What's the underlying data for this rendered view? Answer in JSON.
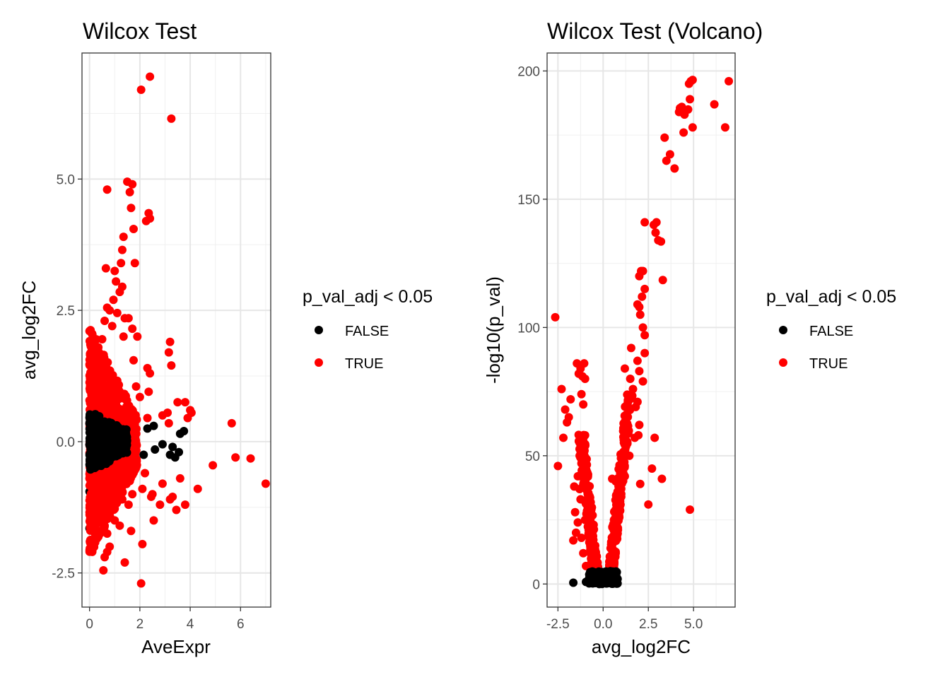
{
  "legend": {
    "title": "p_val_adj < 0.05",
    "entries": [
      {
        "label": "FALSE",
        "color": "#000000"
      },
      {
        "label": "TRUE",
        "color": "#ff0000"
      }
    ]
  },
  "chart_data": [
    {
      "type": "scatter",
      "title": "Wilcox Test",
      "xlabel": "AveExpr",
      "ylabel": "avg_log2FC",
      "xlim": [
        -0.3,
        7.2
      ],
      "ylim": [
        -3.15,
        7.4
      ],
      "xticks": [
        {
          "v": 0,
          "label": "0"
        },
        {
          "v": 2,
          "label": "2"
        },
        {
          "v": 4,
          "label": "4"
        },
        {
          "v": 6,
          "label": "6"
        }
      ],
      "yticks": [
        {
          "v": -2.5,
          "label": "-2.5"
        },
        {
          "v": 0,
          "label": "0.0"
        },
        {
          "v": 2.5,
          "label": "2.5"
        },
        {
          "v": 5,
          "label": "5.0"
        }
      ],
      "grid": true,
      "legend_position": "right",
      "series": [
        {
          "name": "TRUE",
          "color": "#ff0000",
          "points": [
            [
              2.4,
              6.95
            ],
            [
              2.05,
              6.7
            ],
            [
              3.25,
              6.15
            ],
            [
              1.5,
              4.95
            ],
            [
              1.7,
              4.9
            ],
            [
              1.6,
              4.75
            ],
            [
              0.7,
              4.8
            ],
            [
              1.65,
              4.45
            ],
            [
              2.35,
              4.35
            ],
            [
              2.25,
              4.2
            ],
            [
              2.4,
              4.25
            ],
            [
              1.75,
              4.05
            ],
            [
              1.35,
              3.9
            ],
            [
              1.3,
              3.65
            ],
            [
              1.8,
              3.4
            ],
            [
              1.25,
              3.4
            ],
            [
              0.65,
              3.3
            ],
            [
              1.0,
              3.25
            ],
            [
              1.05,
              3.05
            ],
            [
              1.3,
              2.95
            ],
            [
              1.2,
              2.85
            ],
            [
              0.95,
              2.7
            ],
            [
              0.7,
              2.55
            ],
            [
              0.8,
              2.5
            ],
            [
              1.1,
              2.45
            ],
            [
              1.55,
              2.35
            ],
            [
              1.4,
              2.35
            ],
            [
              0.6,
              2.3
            ],
            [
              0.9,
              2.2
            ],
            [
              1.7,
              2.15
            ],
            [
              1.35,
              2.0
            ],
            [
              0.5,
              1.95
            ],
            [
              1.9,
              2.0
            ],
            [
              3.2,
              1.9
            ],
            [
              3.15,
              1.7
            ],
            [
              1.75,
              1.55
            ],
            [
              2.3,
              1.4
            ],
            [
              3.25,
              1.45
            ],
            [
              2.4,
              1.3
            ],
            [
              0.45,
              1.4
            ],
            [
              0.8,
              1.2
            ],
            [
              1.85,
              1.05
            ],
            [
              2.35,
              0.95
            ],
            [
              2.0,
              0.85
            ],
            [
              1.2,
              0.95
            ],
            [
              3.5,
              0.75
            ],
            [
              3.8,
              0.75
            ],
            [
              2.9,
              0.5
            ],
            [
              3.1,
              0.55
            ],
            [
              3.15,
              0.35
            ],
            [
              2.3,
              0.45
            ],
            [
              3.9,
              0.45
            ],
            [
              4.05,
              0.55
            ],
            [
              4.0,
              0.6
            ],
            [
              5.65,
              0.35
            ],
            [
              4.9,
              -0.45
            ],
            [
              5.8,
              -0.3
            ],
            [
              6.4,
              -0.32
            ],
            [
              7.0,
              -0.8
            ],
            [
              4.3,
              -0.9
            ],
            [
              3.8,
              -1.2
            ],
            [
              3.3,
              -1.05
            ],
            [
              3.45,
              -1.3
            ],
            [
              3.2,
              -1.1
            ],
            [
              2.1,
              -0.9
            ],
            [
              2.5,
              -1.0
            ],
            [
              2.8,
              -1.2
            ],
            [
              2.55,
              -1.5
            ],
            [
              2.45,
              -1.05
            ],
            [
              1.55,
              -1.2
            ],
            [
              1.7,
              -1.0
            ],
            [
              1.3,
              -1.1
            ],
            [
              1.0,
              -1.5
            ],
            [
              0.6,
              -1.6
            ],
            [
              0.7,
              -1.75
            ],
            [
              1.2,
              -1.6
            ],
            [
              1.65,
              -1.7
            ],
            [
              2.1,
              -1.95
            ],
            [
              0.7,
              -2.1
            ],
            [
              0.6,
              -2.2
            ],
            [
              0.8,
              -2.0
            ],
            [
              0.55,
              -2.45
            ],
            [
              1.4,
              -2.3
            ],
            [
              2.05,
              -2.7
            ],
            [
              0.3,
              -1.4
            ],
            [
              0.4,
              -1.2
            ],
            [
              1.0,
              -0.85
            ],
            [
              0.5,
              -0.95
            ],
            [
              1.6,
              -0.75
            ],
            [
              2.9,
              -0.8
            ],
            [
              3.6,
              -0.7
            ],
            [
              2.2,
              -0.6
            ]
          ]
        },
        {
          "name": "FALSE",
          "color": "#000000",
          "points": [
            [
              0.0,
              -1.65
            ],
            [
              0.0,
              -0.95
            ],
            [
              0.1,
              -0.85
            ],
            [
              0.15,
              0.8
            ],
            [
              0.3,
              0.5
            ],
            [
              0.2,
              -0.3
            ],
            [
              0.4,
              0.1
            ],
            [
              0.6,
              -0.2
            ],
            [
              0.8,
              0.3
            ],
            [
              1.0,
              0.2
            ],
            [
              1.3,
              0.35
            ],
            [
              1.6,
              0.15
            ],
            [
              2.3,
              0.25
            ],
            [
              2.55,
              0.3
            ],
            [
              3.6,
              0.15
            ],
            [
              3.75,
              0.2
            ],
            [
              2.9,
              -0.05
            ],
            [
              3.3,
              -0.1
            ],
            [
              3.55,
              -0.2
            ],
            [
              3.2,
              -0.25
            ],
            [
              2.15,
              -0.25
            ],
            [
              2.6,
              -0.15
            ],
            [
              3.4,
              -0.3
            ],
            [
              1.8,
              -0.1
            ],
            [
              1.2,
              -0.3
            ]
          ]
        }
      ]
    },
    {
      "type": "scatter",
      "title": "Wilcox Test (Volcano)",
      "xlabel": "avg_log2FC",
      "ylabel": "-log10(p_val)",
      "xlim": [
        -3.1,
        7.3
      ],
      "ylim": [
        -9,
        207
      ],
      "xticks": [
        {
          "v": -2.5,
          "label": "-2.5"
        },
        {
          "v": 0,
          "label": "0.0"
        },
        {
          "v": 2.5,
          "label": "2.5"
        },
        {
          "v": 5,
          "label": "5.0"
        }
      ],
      "yticks": [
        {
          "v": 0,
          "label": "0"
        },
        {
          "v": 50,
          "label": "50"
        },
        {
          "v": 100,
          "label": "100"
        },
        {
          "v": 150,
          "label": "150"
        },
        {
          "v": 200,
          "label": "200"
        }
      ],
      "grid": true,
      "legend_position": "right",
      "series": [
        {
          "name": "TRUE",
          "color": "#ff0000",
          "points": [
            [
              6.95,
              196
            ],
            [
              4.85,
              196
            ],
            [
              4.95,
              196.5
            ],
            [
              4.75,
              195
            ],
            [
              4.8,
              189
            ],
            [
              4.7,
              185
            ],
            [
              6.15,
              187
            ],
            [
              4.35,
              186
            ],
            [
              4.25,
              185.5
            ],
            [
              4.2,
              184
            ],
            [
              4.5,
              183
            ],
            [
              4.45,
              176
            ],
            [
              4.95,
              178
            ],
            [
              6.75,
              178
            ],
            [
              3.4,
              174
            ],
            [
              3.7,
              167.5
            ],
            [
              3.5,
              165
            ],
            [
              3.95,
              162
            ],
            [
              2.3,
              141
            ],
            [
              2.95,
              141
            ],
            [
              2.9,
              137
            ],
            [
              3.05,
              134
            ],
            [
              3.2,
              133.5
            ],
            [
              2.8,
              140
            ],
            [
              2.1,
              122
            ],
            [
              2.2,
              122
            ],
            [
              2.0,
              120
            ],
            [
              3.3,
              118.5
            ],
            [
              2.3,
              115
            ],
            [
              2.15,
              112
            ],
            [
              1.9,
              109
            ],
            [
              2.0,
              108
            ],
            [
              2.05,
              105
            ],
            [
              2.2,
              100
            ],
            [
              2.3,
              97
            ],
            [
              1.55,
              92
            ],
            [
              2.3,
              90
            ],
            [
              1.9,
              87
            ],
            [
              1.2,
              84
            ],
            [
              2.0,
              83
            ],
            [
              1.5,
              80
            ],
            [
              2.2,
              79
            ],
            [
              1.65,
              76
            ],
            [
              1.9,
              71
            ],
            [
              1.8,
              69
            ],
            [
              2.0,
              62
            ],
            [
              1.95,
              58
            ],
            [
              1.75,
              57
            ],
            [
              2.85,
              57
            ],
            [
              1.3,
              55
            ],
            [
              1.45,
              50
            ],
            [
              1.1,
              47
            ],
            [
              1.0,
              44
            ],
            [
              1.2,
              42
            ],
            [
              2.7,
              45
            ],
            [
              3.25,
              41
            ],
            [
              2.05,
              39
            ],
            [
              2.5,
              31
            ],
            [
              4.8,
              29
            ],
            [
              0.5,
              41
            ],
            [
              0.7,
              40
            ],
            [
              0.8,
              36
            ],
            [
              1.0,
              34
            ],
            [
              0.9,
              30
            ],
            [
              0.6,
              25
            ],
            [
              0.7,
              20
            ],
            [
              0.5,
              14
            ],
            [
              0.4,
              8
            ],
            [
              0.3,
              5
            ],
            [
              -2.65,
              104
            ],
            [
              -2.3,
              76
            ],
            [
              -2.1,
              68
            ],
            [
              -2.0,
              63
            ],
            [
              -1.9,
              65
            ],
            [
              -1.8,
              72
            ],
            [
              -1.45,
              86
            ],
            [
              -1.25,
              84
            ],
            [
              -1.05,
              86
            ],
            [
              -1.15,
              81
            ],
            [
              -1.35,
              82
            ],
            [
              -1.0,
              80
            ],
            [
              -1.2,
              74
            ],
            [
              -1.1,
              70
            ],
            [
              -2.2,
              57
            ],
            [
              -1.0,
              58
            ],
            [
              -1.05,
              53
            ],
            [
              -1.3,
              50
            ],
            [
              -1.2,
              47
            ],
            [
              -2.5,
              46
            ],
            [
              -1.0,
              46
            ],
            [
              -0.9,
              42
            ],
            [
              -1.4,
              42
            ],
            [
              -1.6,
              38
            ],
            [
              -1.3,
              37
            ],
            [
              -1.25,
              33
            ],
            [
              -0.85,
              31
            ],
            [
              -1.55,
              28
            ],
            [
              -1.0,
              25
            ],
            [
              -1.4,
              24
            ],
            [
              -0.8,
              21
            ],
            [
              -1.2,
              18
            ],
            [
              -0.7,
              14
            ],
            [
              -1.1,
              12
            ],
            [
              -0.6,
              9
            ],
            [
              -0.95,
              7
            ],
            [
              -1.5,
              20
            ],
            [
              -1.65,
              17
            ]
          ]
        },
        {
          "name": "FALSE",
          "color": "#000000",
          "points": [
            [
              -1.65,
              0.5
            ],
            [
              -0.95,
              0.8
            ],
            [
              -0.85,
              1.2
            ],
            [
              -0.5,
              2
            ],
            [
              -0.3,
              3
            ],
            [
              -0.2,
              4
            ],
            [
              -0.1,
              1.5
            ],
            [
              0.0,
              0.5
            ],
            [
              0.1,
              2.5
            ],
            [
              0.2,
              3.5
            ],
            [
              0.3,
              1
            ],
            [
              0.4,
              4.5
            ],
            [
              0.5,
              2
            ],
            [
              0.6,
              1
            ],
            [
              0.8,
              2
            ],
            [
              -0.6,
              4
            ],
            [
              -0.75,
              1.5
            ],
            [
              -0.4,
              0.8
            ],
            [
              0.0,
              4.5
            ],
            [
              0.25,
              0.3
            ]
          ]
        }
      ]
    }
  ]
}
